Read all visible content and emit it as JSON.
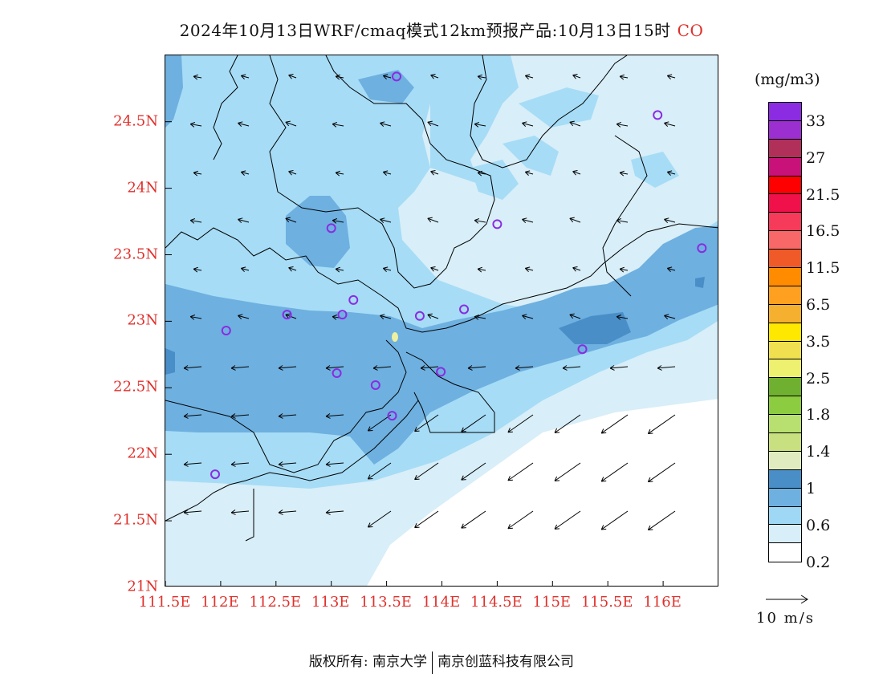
{
  "title": {
    "text": "2024年10月13日WRF/cmaq模式12km预报产品:10月13日15时",
    "pollutant": "CO"
  },
  "axes": {
    "y_ticks": [
      "24.5N",
      "24N",
      "23.5N",
      "23N",
      "22.5N",
      "22N",
      "21.5N",
      "21N"
    ],
    "x_ticks": [
      "111.5E",
      "112E",
      "112.5E",
      "113E",
      "113.5E",
      "114E",
      "114.5E",
      "115E",
      "115.5E",
      "116E"
    ],
    "label_color": "#e0302b"
  },
  "legend": {
    "unit": "(mg/m3)",
    "colors": [
      "#8b2be2",
      "#9c2fd0",
      "#b0305a",
      "#c8127a",
      "#ff0000",
      "#f0104a",
      "#f53a5a",
      "#f86868",
      "#f05a28",
      "#ff8c00",
      "#ffa020",
      "#f5b030",
      "#ffe800",
      "#f0e050",
      "#eef070",
      "#70b030",
      "#8ccc40",
      "#b8e070",
      "#c8e080",
      "#e0ecc0",
      "#4a8ec8",
      "#6eb0e0",
      "#9ed8f4",
      "#d8eef8",
      "#ffffff"
    ],
    "labels": [
      "33",
      "27",
      "21.5",
      "16.5",
      "11.5",
      "6.5",
      "3.5",
      "2.5",
      "1.8",
      "1.4",
      "1",
      "0.6",
      "0.2"
    ]
  },
  "wind_reference": {
    "label": "10 m/s"
  },
  "footer": {
    "left": "版权所有: 南京大学",
    "right": "南京创蓝科技有限公司"
  },
  "map_colors": {
    "very_light": "#d8eef8",
    "light": "#a6dcf6",
    "medium": "#6eb0e0",
    "dark": "#4a8ec8",
    "white": "#ffffff"
  },
  "stations": [
    {
      "lon": 113.59,
      "lat": 24.84
    },
    {
      "lon": 115.95,
      "lat": 24.55
    },
    {
      "lon": 113.0,
      "lat": 23.7
    },
    {
      "lon": 114.5,
      "lat": 23.73
    },
    {
      "lon": 116.35,
      "lat": 23.55
    },
    {
      "lon": 112.05,
      "lat": 22.93
    },
    {
      "lon": 112.6,
      "lat": 23.05
    },
    {
      "lon": 113.1,
      "lat": 23.05
    },
    {
      "lon": 113.2,
      "lat": 23.16
    },
    {
      "lon": 113.8,
      "lat": 23.04
    },
    {
      "lon": 114.2,
      "lat": 23.09
    },
    {
      "lon": 115.27,
      "lat": 22.79
    },
    {
      "lon": 113.05,
      "lat": 22.61
    },
    {
      "lon": 113.4,
      "lat": 22.52
    },
    {
      "lon": 113.99,
      "lat": 22.62
    },
    {
      "lon": 113.55,
      "lat": 22.29
    },
    {
      "lon": 111.95,
      "lat": 21.85
    }
  ]
}
